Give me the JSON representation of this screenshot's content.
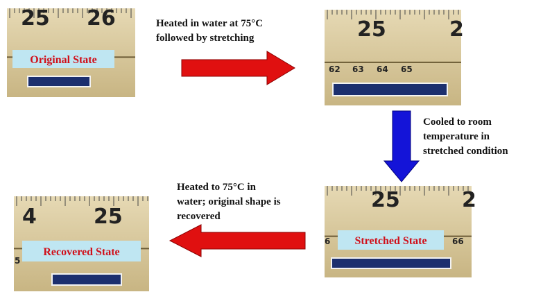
{
  "panels": [
    {
      "label": "Original State",
      "ruler": [
        "25",
        "26"
      ]
    },
    {
      "label": "",
      "ruler": [
        "25",
        "2",
        "62",
        "63",
        "64",
        "65"
      ]
    },
    {
      "label": "Stretched State",
      "ruler": [
        "25",
        "2",
        "6",
        "66"
      ]
    },
    {
      "label": "Recovered State",
      "ruler": [
        "4",
        "25",
        "5"
      ]
    }
  ],
  "arrows": [
    {
      "caption": [
        "Heated in water at 75°C",
        "followed by stretching"
      ]
    },
    {
      "caption": [
        "Cooled to room",
        "temperature in",
        "stretched condition"
      ]
    },
    {
      "caption": [
        "Heated to 75°C in",
        "water; original shape is",
        "recovered"
      ]
    }
  ]
}
